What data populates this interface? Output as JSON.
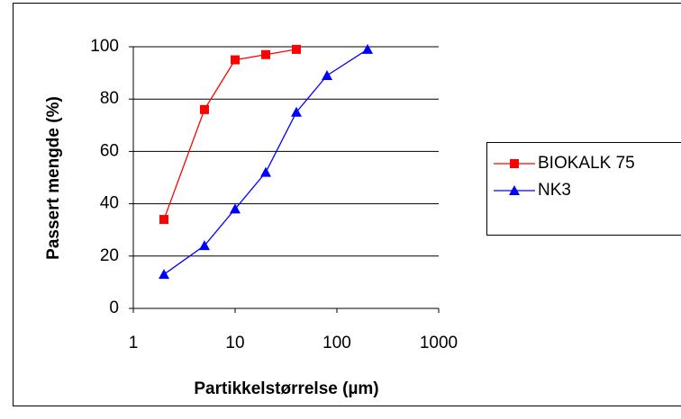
{
  "chart_data": {
    "type": "line",
    "x_label": "Partikkelstørrelse (µm)",
    "y_label": "Passert mengde (%)",
    "xscale": "log",
    "xlim": [
      1,
      1000
    ],
    "xticks": [
      1,
      10,
      100,
      1000
    ],
    "ylim": [
      0,
      100
    ],
    "yticks": [
      0,
      20,
      40,
      60,
      80,
      100
    ],
    "grid": true,
    "legend": "right",
    "series": [
      {
        "name": "BIOKALK 75",
        "color": "#ff0000",
        "marker": "square",
        "x": [
          2,
          5,
          10,
          20,
          40
        ],
        "values": [
          34,
          76,
          95,
          97,
          99
        ]
      },
      {
        "name": "NK3",
        "color": "#0000ff",
        "marker": "triangle",
        "x": [
          2,
          5,
          10,
          20,
          40,
          80,
          200
        ],
        "values": [
          13,
          24,
          38,
          52,
          75,
          89,
          99
        ]
      }
    ]
  }
}
